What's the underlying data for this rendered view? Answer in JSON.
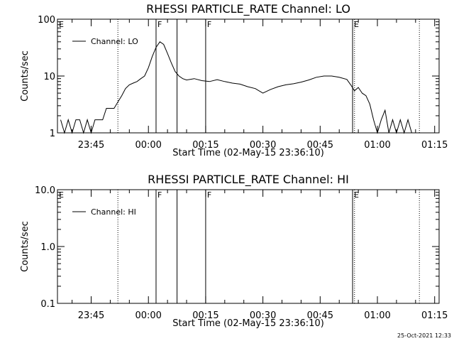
{
  "timestamp": "25-Oct-2021 12:33",
  "chart_data": [
    {
      "type": "line",
      "title": "RHESSI PARTICLE_RATE Channel: LO",
      "xlabel": "Start Time (02-May-15 23:36:10)",
      "ylabel": "Counts/sec",
      "y_scale": "log",
      "ylim": [
        1,
        100
      ],
      "y_ticks": [
        "1",
        "10",
        "100"
      ],
      "xlim": [
        "23:36:10",
        "01:16:10"
      ],
      "x_ticks": [
        "23:45",
        "00:00",
        "00:15",
        "00:30",
        "00:45",
        "01:00",
        "01:15"
      ],
      "series": [
        {
          "name": "Channel: LO",
          "x": [
            "23:37",
            "23:38",
            "23:39",
            "23:40",
            "23:41",
            "23:42",
            "23:43",
            "23:44",
            "23:45",
            "23:46",
            "23:47",
            "23:48",
            "23:49",
            "23:50",
            "23:51",
            "23:52",
            "23:53",
            "23:54",
            "23:55",
            "23:56",
            "23:57",
            "23:58",
            "23:59",
            "00:00",
            "00:01",
            "00:02",
            "00:03",
            "00:04",
            "00:05",
            "00:06",
            "00:07",
            "00:08",
            "00:09",
            "00:10",
            "00:12",
            "00:14",
            "00:16",
            "00:18",
            "00:20",
            "00:22",
            "00:24",
            "00:26",
            "00:28",
            "00:30",
            "00:32",
            "00:34",
            "00:36",
            "00:38",
            "00:40",
            "00:42",
            "00:44",
            "00:46",
            "00:48",
            "00:50",
            "00:52",
            "00:53",
            "00:54",
            "00:55",
            "00:56",
            "00:57",
            "00:58",
            "00:59",
            "01:00",
            "01:01",
            "01:02",
            "01:03",
            "01:04",
            "01:05",
            "01:06",
            "01:07",
            "01:08",
            "01:09",
            "01:10"
          ],
          "y": [
            1.7,
            1,
            1.7,
            1,
            1.7,
            1.7,
            1,
            1.7,
            1,
            1.7,
            1.7,
            1.7,
            2.7,
            2.7,
            2.7,
            3.5,
            4.5,
            6,
            7,
            7.5,
            8,
            9,
            10,
            14,
            22,
            32,
            40,
            36,
            25,
            17,
            12,
            10,
            9,
            8.5,
            9,
            8.3,
            8,
            8.6,
            8,
            7.5,
            7.2,
            6.5,
            6,
            5,
            5.8,
            6.5,
            7,
            7.3,
            7.8,
            8.5,
            9.5,
            10,
            10,
            9.5,
            8.7,
            7,
            5.5,
            6.3,
            5,
            4.5,
            3.2,
            1.7,
            1,
            1.7,
            2.5,
            1,
            1.7,
            1,
            1.7,
            1,
            1.7,
            1,
            1
          ]
        }
      ],
      "markers": [
        {
          "label": "E",
          "time": "23:36:10",
          "style": "dotted"
        },
        {
          "label": "",
          "time": "23:52",
          "style": "dotted"
        },
        {
          "label": "F",
          "time": "00:02",
          "style": "solid"
        },
        {
          "label": "",
          "time": "00:07:30",
          "style": "solid"
        },
        {
          "label": "F",
          "time": "00:15",
          "style": "solid"
        },
        {
          "label": "E",
          "time": "00:53:30",
          "style": "solid"
        },
        {
          "label": "",
          "time": "00:54",
          "style": "dotted"
        },
        {
          "label": "",
          "time": "01:11",
          "style": "dotted"
        }
      ]
    },
    {
      "type": "line",
      "title": "RHESSI PARTICLE_RATE Channel: HI",
      "xlabel": "Start Time (02-May-15 23:36:10)",
      "ylabel": "Counts/sec",
      "y_scale": "log",
      "ylim": [
        0.1,
        10
      ],
      "y_ticks": [
        "0.1",
        "1.0",
        "10.0"
      ],
      "xlim": [
        "23:36:10",
        "01:16:10"
      ],
      "x_ticks": [
        "23:45",
        "00:00",
        "00:15",
        "00:30",
        "00:45",
        "01:00",
        "01:15"
      ],
      "series": [
        {
          "name": "Channel: HI",
          "x": [],
          "y": []
        }
      ],
      "markers": [
        {
          "label": "E",
          "time": "23:36:10",
          "style": "dotted"
        },
        {
          "label": "",
          "time": "23:52",
          "style": "dotted"
        },
        {
          "label": "F",
          "time": "00:02",
          "style": "solid"
        },
        {
          "label": "",
          "time": "00:07:30",
          "style": "solid"
        },
        {
          "label": "F",
          "time": "00:15",
          "style": "solid"
        },
        {
          "label": "E",
          "time": "00:53:30",
          "style": "solid"
        },
        {
          "label": "",
          "time": "00:54",
          "style": "dotted"
        },
        {
          "label": "",
          "time": "01:11",
          "style": "dotted"
        }
      ]
    }
  ]
}
